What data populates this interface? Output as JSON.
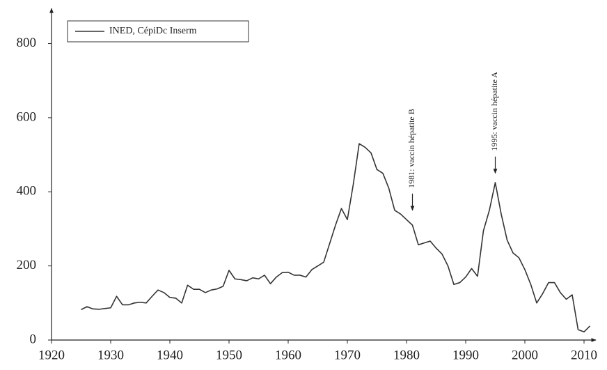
{
  "chart_data": {
    "type": "line",
    "x": [
      1925,
      1926,
      1927,
      1928,
      1929,
      1930,
      1931,
      1932,
      1933,
      1934,
      1935,
      1936,
      1937,
      1938,
      1939,
      1940,
      1941,
      1942,
      1943,
      1944,
      1945,
      1946,
      1947,
      1948,
      1949,
      1950,
      1951,
      1952,
      1953,
      1954,
      1955,
      1956,
      1957,
      1958,
      1959,
      1960,
      1961,
      1962,
      1963,
      1964,
      1965,
      1966,
      1967,
      1968,
      1969,
      1970,
      1971,
      1972,
      1973,
      1974,
      1975,
      1976,
      1977,
      1978,
      1979,
      1980,
      1981,
      1982,
      1983,
      1984,
      1985,
      1986,
      1987,
      1988,
      1989,
      1990,
      1991,
      1992,
      1993,
      1994,
      1995,
      1996,
      1997,
      1998,
      1999,
      2000,
      2001,
      2002,
      2003,
      2004,
      2005,
      2006,
      2007,
      2008,
      2009,
      2010,
      2011
    ],
    "series": [
      {
        "name": "INED, CépiDc Inserm",
        "color": "#333333",
        "values": [
          82,
          90,
          84,
          83,
          85,
          87,
          118,
          95,
          95,
          100,
          102,
          100,
          118,
          135,
          128,
          115,
          113,
          100,
          148,
          137,
          137,
          128,
          135,
          138,
          145,
          188,
          165,
          163,
          160,
          168,
          165,
          175,
          152,
          170,
          182,
          183,
          175,
          175,
          170,
          190,
          200,
          210,
          260,
          310,
          355,
          325,
          420,
          530,
          520,
          505,
          460,
          450,
          410,
          350,
          340,
          325,
          310,
          257,
          262,
          267,
          248,
          232,
          200,
          150,
          155,
          170,
          193,
          172,
          295,
          350,
          425,
          340,
          270,
          235,
          222,
          190,
          150,
          100,
          125,
          155,
          155,
          128,
          110,
          122,
          28,
          22,
          38
        ]
      }
    ],
    "xlim": [
      1920,
      2012
    ],
    "ylim": [
      0,
      880
    ],
    "xticks": [
      1920,
      1930,
      1940,
      1950,
      1960,
      1970,
      1980,
      1990,
      2000,
      2010
    ],
    "yticks": [
      0,
      200,
      400,
      600,
      800
    ],
    "legend": "upper left",
    "annotations": [
      {
        "text": "1981: vaccin hépatite B",
        "x": 1981,
        "y": 350
      },
      {
        "text": "1995: vaccin hépatite A",
        "x": 1995,
        "y": 450
      }
    ]
  }
}
